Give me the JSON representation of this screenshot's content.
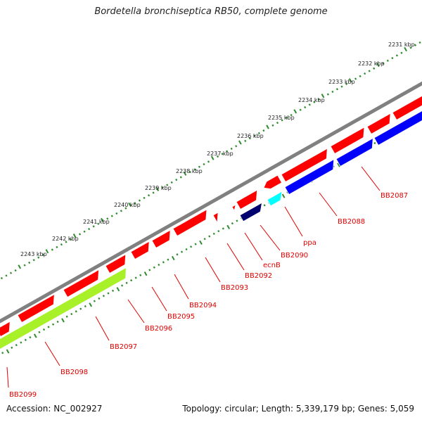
{
  "header": {
    "title": "Bordetella bronchiseptica RB50, complete genome"
  },
  "footer": {
    "accession": "Accession: NC_002927",
    "summary": "Topology: circular; Length: 5,339,179 bp; Genes: 5,059"
  },
  "colors": {
    "backbone": "#808080",
    "forward_gene": "#ff0000",
    "reverse_gene": "#0000ff",
    "dark_gene": "#00006e",
    "cyan_gene": "#00ffff",
    "green_gene": "#a8f028",
    "tick": "#2e8b2e",
    "label_line": "#e00000"
  },
  "scale_labels": [
    "2231 kbp",
    "2232 kbp",
    "2233 kbp",
    "2234 kbp",
    "2235 kbp",
    "2236 kbp",
    "2237 kbp",
    "2238 kbp",
    "2239 kbp",
    "2240 kbp",
    "2241 kbp",
    "2242 kbp",
    "2243 kbp"
  ],
  "gene_labels": [
    "BB2087",
    "BB2088",
    "ppa",
    "BB2090",
    "ecnB",
    "BB2092",
    "BB2093",
    "BB2094",
    "BB2095",
    "BB2096",
    "BB2097",
    "BB2098",
    "BB2099"
  ]
}
